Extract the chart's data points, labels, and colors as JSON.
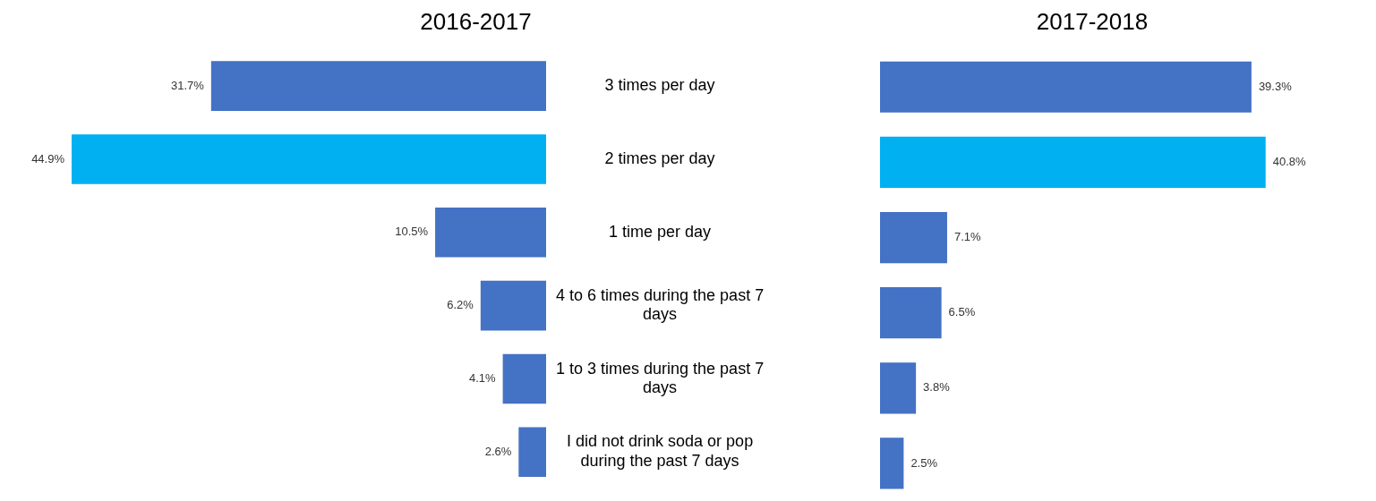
{
  "chart_data": [
    {
      "type": "bar",
      "orientation": "horizontal",
      "title": "2016-2017",
      "tick_labels": "y",
      "legend": false,
      "categories": [
        "3 times per day",
        "2 times per day",
        "1 time per day",
        "4 to 6 times during the past 7 days",
        "1 to 3 times during the past 7 days",
        "I did not drink soda or pop during the past 7 days"
      ],
      "values": [
        31.7,
        44.9,
        10.5,
        6.2,
        4.1,
        2.6
      ],
      "colors": [
        "#4472c4",
        "#00b0f0",
        "#4472c4",
        "#4472c4",
        "#4472c4",
        "#4472c4"
      ],
      "value_labels": [
        "31.7%",
        "44.9%",
        "10.5%",
        "6.2%",
        "4.1%",
        "2.6%"
      ]
    },
    {
      "type": "bar",
      "orientation": "horizontal",
      "title": "2017-2018",
      "tick_labels": false,
      "legend": false,
      "values": [
        39.3,
        40.8,
        7.1,
        6.5,
        3.8,
        2.5
      ],
      "colors": [
        "#4472c4",
        "#00b0f0",
        "#4472c4",
        "#4472c4",
        "#4472c4",
        "#4472c4"
      ],
      "value_labels": [
        "39.3%",
        "40.8%",
        "7.1%",
        "6.5%",
        "3.8%",
        "2.5%"
      ]
    }
  ]
}
